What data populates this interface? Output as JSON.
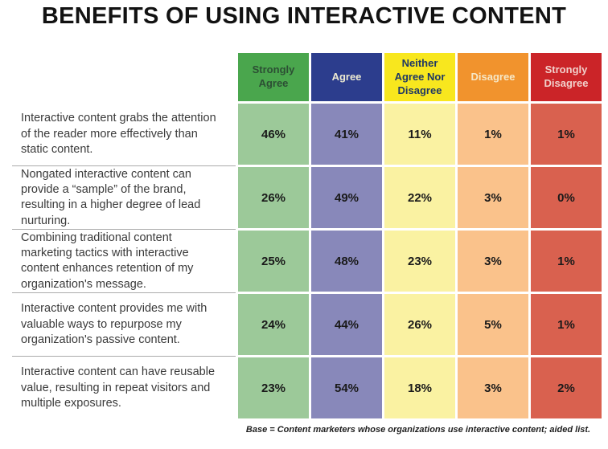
{
  "title": "BENEFITS OF USING INTERACTIVE CONTENT",
  "footnote": "Base = Content marketers whose organizations use interactive content; aided list.",
  "columns": [
    {
      "key": "strongly-agree",
      "label": "Strongly Agree",
      "header_bg": "#4aa64d",
      "header_text": "#2c4f34",
      "cell_bg": "#9cc999"
    },
    {
      "key": "agree",
      "label": "Agree",
      "header_bg": "#2c3d8d",
      "header_text": "#ece9d1",
      "cell_bg": "#8888ba"
    },
    {
      "key": "neither-agree-nor-disagree",
      "label": "Neither Agree Nor Disagree",
      "header_bg": "#f8e71e",
      "header_text": "#1f3864",
      "cell_bg": "#faf2a2"
    },
    {
      "key": "disagree",
      "label": "Disagree",
      "header_bg": "#f1932d",
      "header_text": "#f6e7c6",
      "cell_bg": "#fac28b"
    },
    {
      "key": "strongly-disagree",
      "label": "Strongly Disagree",
      "header_bg": "#cb2428",
      "header_text": "#f1d0cb",
      "cell_bg": "#d9614f"
    }
  ],
  "rows": [
    {
      "statement": "Interactive content grabs the attention of the reader more effectively than static content.",
      "values": [
        "46%",
        "41%",
        "11%",
        "1%",
        "1%"
      ]
    },
    {
      "statement": "Nongated interactive content can provide a “sample” of the brand, resulting in a higher degree of lead nurturing.",
      "values": [
        "26%",
        "49%",
        "22%",
        "3%",
        "0%"
      ]
    },
    {
      "statement": "Combining traditional content marketing tactics with interactive content enhances retention of my organization's message.",
      "values": [
        "25%",
        "48%",
        "23%",
        "3%",
        "1%"
      ]
    },
    {
      "statement": "Interactive content provides me with valuable ways to repurpose my organization's passive content.",
      "values": [
        "24%",
        "44%",
        "26%",
        "5%",
        "1%"
      ]
    },
    {
      "statement": "Interactive content can have reusable value, resulting in repeat visitors and multiple exposures.",
      "values": [
        "23%",
        "54%",
        "18%",
        "3%",
        "2%"
      ]
    }
  ],
  "chart_data": {
    "type": "table",
    "title": "BENEFITS OF USING INTERACTIVE CONTENT",
    "columns": [
      "Strongly Agree",
      "Agree",
      "Neither Agree Nor Disagree",
      "Disagree",
      "Strongly Disagree"
    ],
    "rows": [
      {
        "label": "Interactive content grabs the attention of the reader more effectively than static content.",
        "values_pct": [
          46,
          41,
          11,
          1,
          1
        ]
      },
      {
        "label": "Nongated interactive content can provide a “sample” of the brand, resulting in a higher degree of lead nurturing.",
        "values_pct": [
          26,
          49,
          22,
          3,
          0
        ]
      },
      {
        "label": "Combining traditional content marketing tactics with interactive content enhances retention of my organization's message.",
        "values_pct": [
          25,
          48,
          23,
          3,
          1
        ]
      },
      {
        "label": "Interactive content provides me with valuable ways to repurpose my organization's passive content.",
        "values_pct": [
          24,
          44,
          26,
          5,
          1
        ]
      },
      {
        "label": "Interactive content can have reusable value, resulting in repeat visitors and multiple exposures.",
        "values_pct": [
          23,
          54,
          18,
          3,
          2
        ]
      }
    ],
    "footnote": "Base = Content marketers whose organizations use interactive content; aided list.",
    "legend_position": "none",
    "grid": false
  }
}
